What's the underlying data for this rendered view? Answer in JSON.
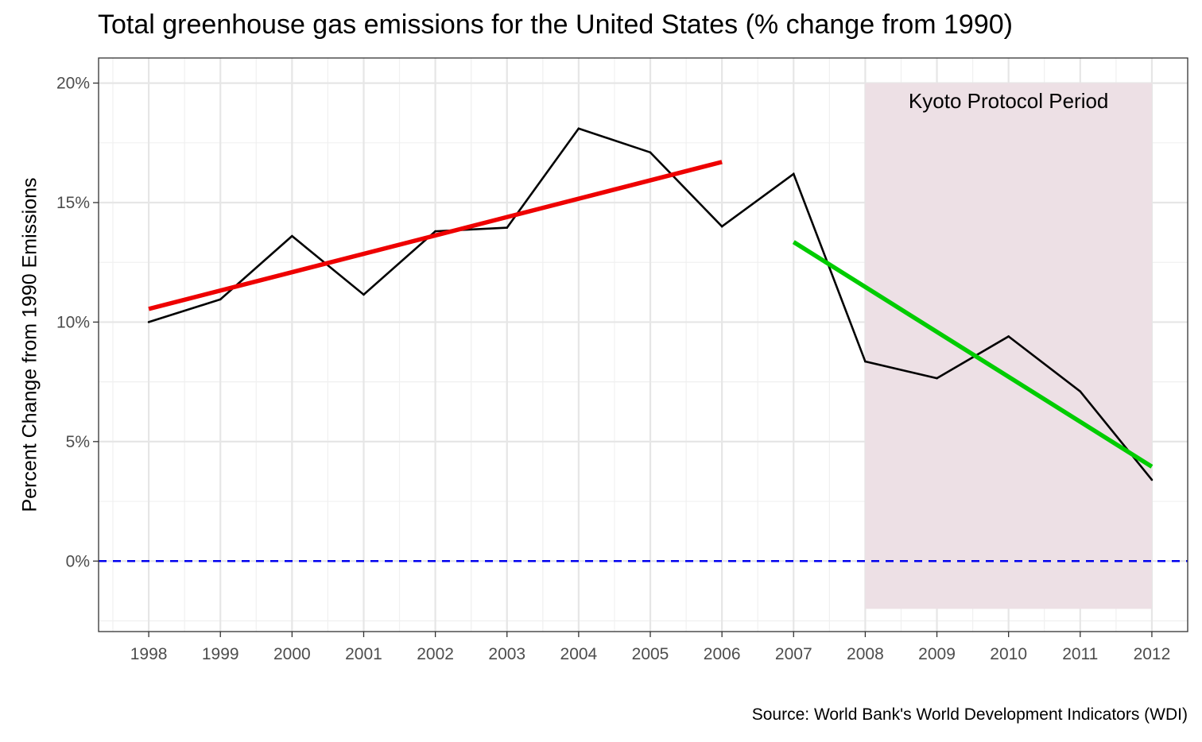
{
  "chart_data": {
    "type": "line",
    "title": "Total greenhouse gas emissions for the United States (% change from 1990)",
    "ylabel": "Percent Change from 1990 Emissions",
    "xlabel": "",
    "caption": "Source: World Bank's World Development Indicators (WDI)",
    "x": [
      1998,
      1999,
      2000,
      2001,
      2002,
      2003,
      2004,
      2005,
      2006,
      2007,
      2008,
      2009,
      2010,
      2011,
      2012
    ],
    "series": [
      {
        "values": [
          10.0,
          10.95,
          13.6,
          11.15,
          13.8,
          13.95,
          18.1,
          17.1,
          14.0,
          16.2,
          8.35,
          7.65,
          9.4,
          7.1,
          3.4
        ],
        "color": "#000000"
      }
    ],
    "trend_lines": [
      {
        "x": [
          1998,
          2006
        ],
        "y": [
          10.55,
          16.7
        ],
        "color": "#ee0000"
      },
      {
        "x": [
          2007,
          2012
        ],
        "y": [
          13.35,
          3.95
        ],
        "color": "#00cc00"
      }
    ],
    "reference_line": {
      "y": 0,
      "color": "#0000ee",
      "style": "dashed"
    },
    "shaded_region": {
      "x": [
        2008,
        2012
      ],
      "y": [
        -2,
        20
      ],
      "label": "Kyoto Protocol Period",
      "color": "#ede0e5"
    },
    "xlim": [
      1997.3,
      2012.5
    ],
    "ylim": [
      -2.95,
      21.05
    ],
    "y_ticks": [
      0,
      5,
      10,
      15,
      20
    ],
    "y_tick_labels": [
      "0%",
      "5%",
      "10%",
      "15%",
      "20%"
    ],
    "x_tick_labels": [
      "1998",
      "1999",
      "2000",
      "2001",
      "2002",
      "2003",
      "2004",
      "2005",
      "2006",
      "2007",
      "2008",
      "2009",
      "2010",
      "2011",
      "2012"
    ],
    "grid": true,
    "legend": "none"
  }
}
